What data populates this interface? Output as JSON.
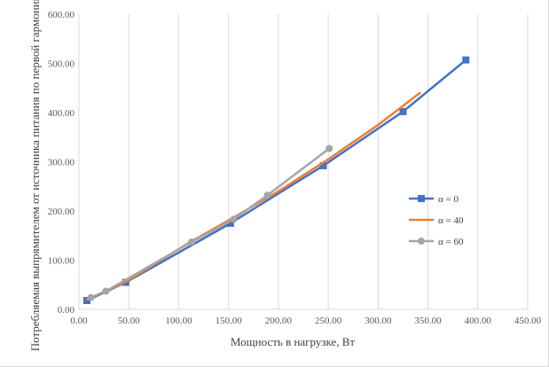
{
  "chart_data": {
    "type": "line",
    "title": "",
    "xlabel": "Мощность в нагрузке, Вт",
    "ylabel": "Потребляемая выпрямителем от источника питания по первой гармонике, Вт",
    "xlim": [
      0,
      450
    ],
    "ylim": [
      0,
      600
    ],
    "xticks": [
      "0.00",
      "50.00",
      "100.00",
      "150.00",
      "200.00",
      "250.00",
      "300.00",
      "350.00",
      "400.00",
      "450.00"
    ],
    "yticks": [
      "0.00",
      "100.00",
      "200.00",
      "300.00",
      "400.00",
      "500.00",
      "600.00"
    ],
    "grid": "vertical",
    "legend_position": "right",
    "series": [
      {
        "name": "α = 0",
        "color": "#4472c4",
        "marker": "square",
        "x": [
          8,
          47,
          152,
          245,
          325,
          388
        ],
        "y": [
          18,
          55,
          175,
          292,
          402,
          507
        ]
      },
      {
        "name": "α = 40",
        "color": "#ed7d31",
        "marker": "none",
        "x": [
          8,
          47,
          110,
          152,
          200,
          250,
          300,
          342
        ],
        "y": [
          20,
          56,
          135,
          183,
          240,
          305,
          375,
          440
        ]
      },
      {
        "name": "α = 60",
        "color": "#a5a5a5",
        "marker": "circle",
        "x": [
          12,
          27,
          113,
          155,
          189,
          251
        ],
        "y": [
          24,
          37,
          137,
          183,
          232,
          327
        ]
      }
    ]
  }
}
